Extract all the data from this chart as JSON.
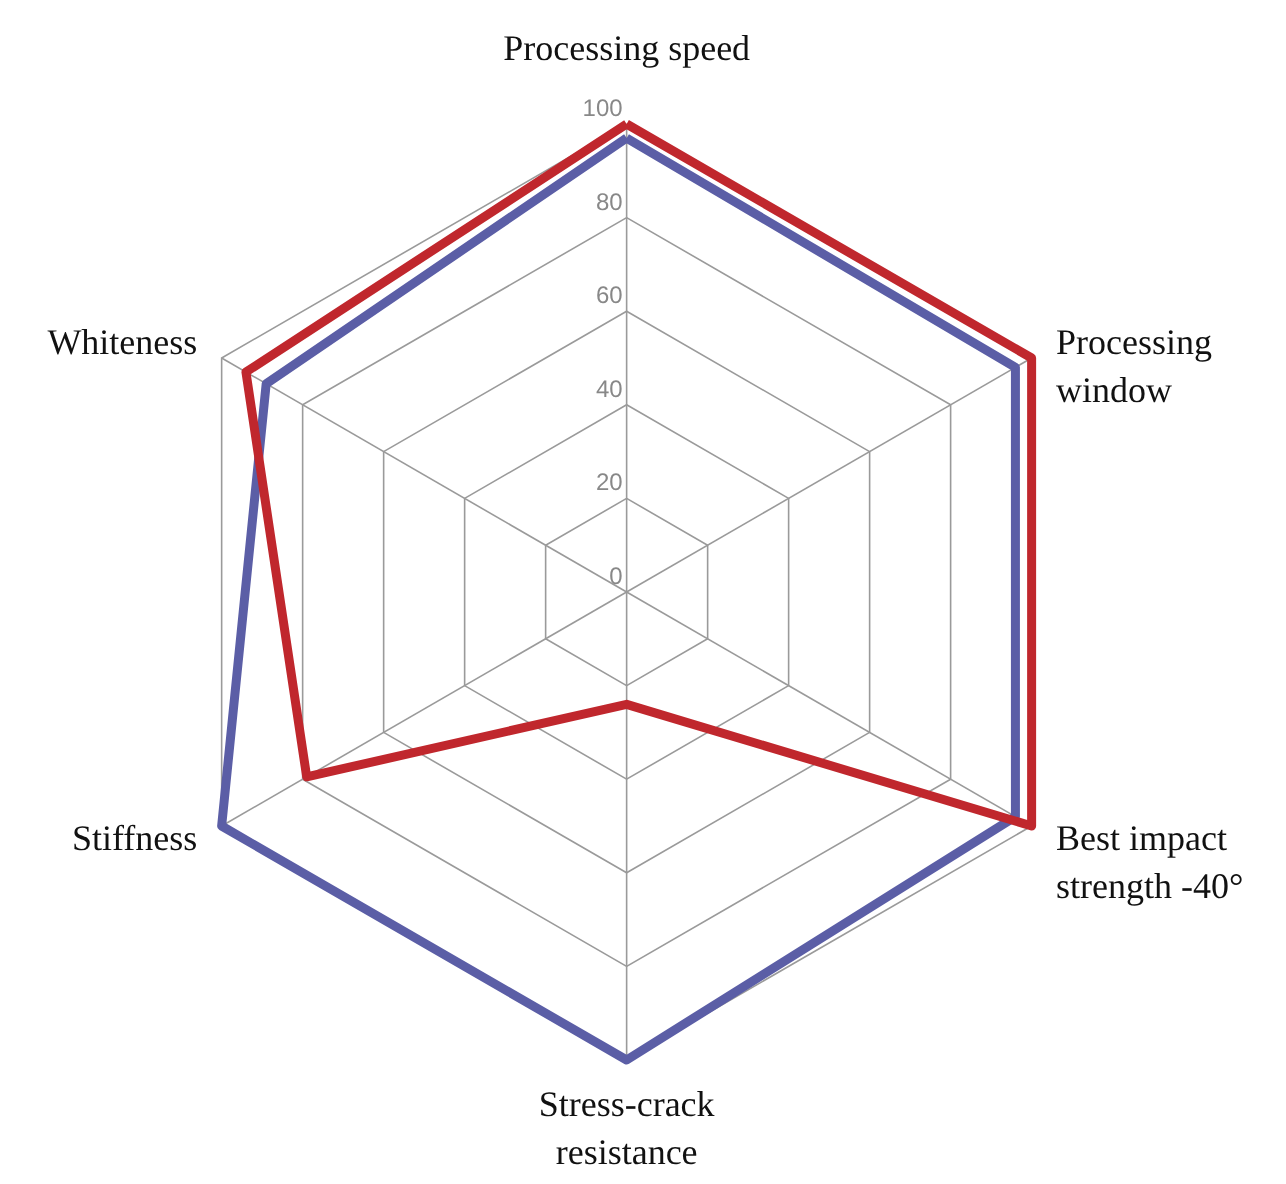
{
  "chart_data": {
    "type": "radar",
    "categories": [
      "Processing speed",
      "Processing window",
      "Best impact strength -40°",
      "Stress-crack resistance",
      "Stiffness",
      "Whiteness"
    ],
    "series": [
      {
        "color": "#5b5ea6",
        "values": [
          97,
          96,
          96,
          100,
          100,
          89
        ]
      },
      {
        "color": "#c0272d",
        "values": [
          100,
          100,
          100,
          24,
          79,
          94
        ]
      }
    ],
    "ylim": [
      0,
      100
    ],
    "yticks": [
      0,
      20,
      40,
      60,
      80,
      100
    ],
    "grid": true
  }
}
